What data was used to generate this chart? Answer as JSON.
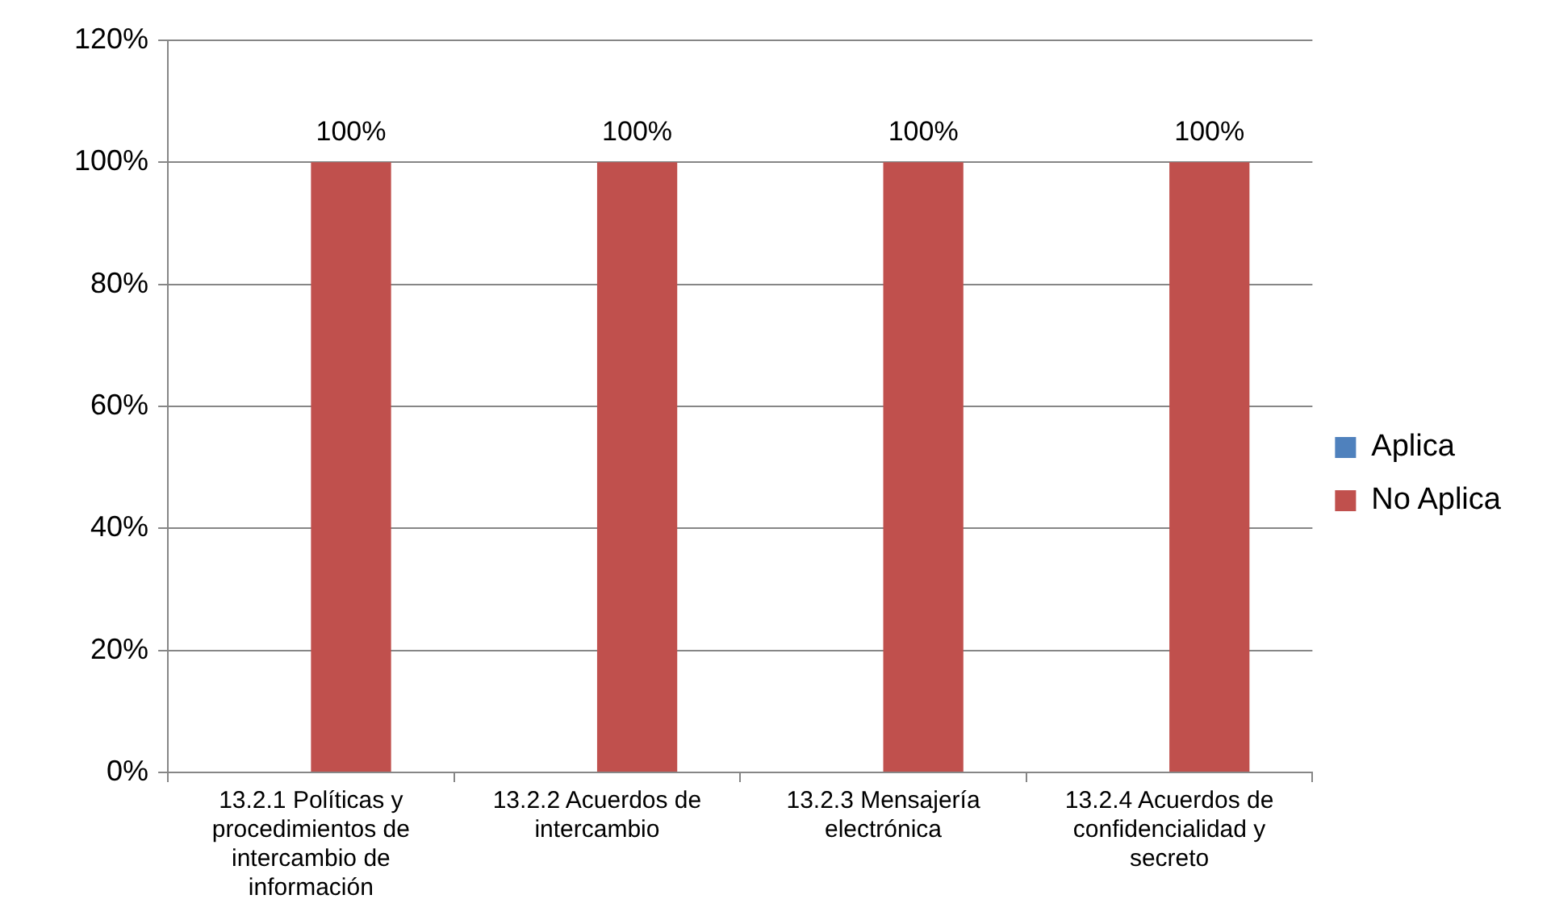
{
  "chart_data": {
    "type": "bar",
    "categories": [
      "13.2.1 Políticas y procedimientos de intercambio de información",
      "13.2.2 Acuerdos de intercambio",
      "13.2.3 Mensajería electrónica",
      "13.2.4 Acuerdos de confidencialidad y secreto"
    ],
    "series": [
      {
        "name": "Aplica",
        "color": "#4f81bd",
        "values": [
          0,
          0,
          0,
          0
        ],
        "value_labels": [
          null,
          null,
          null,
          null
        ]
      },
      {
        "name": "No Aplica",
        "color": "#c0504d",
        "values": [
          100,
          100,
          100,
          100
        ],
        "value_labels": [
          "100%",
          "100%",
          "100%",
          "100%"
        ]
      }
    ],
    "ylim": [
      0,
      120
    ],
    "yticks": [
      {
        "value": 0,
        "label": "0%"
      },
      {
        "value": 20,
        "label": "20%"
      },
      {
        "value": 40,
        "label": "40%"
      },
      {
        "value": 60,
        "label": "60%"
      },
      {
        "value": 80,
        "label": "80%"
      },
      {
        "value": 100,
        "label": "100%"
      },
      {
        "value": 120,
        "label": "120%"
      }
    ],
    "grid": "y",
    "legend": "right"
  }
}
